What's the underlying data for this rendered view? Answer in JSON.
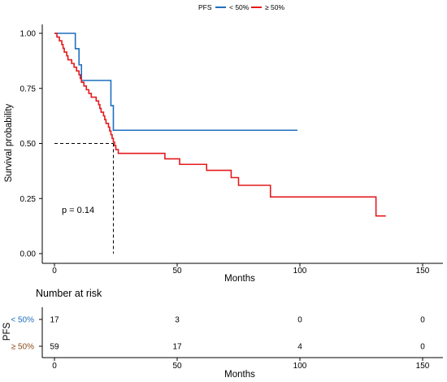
{
  "legend": {
    "title": "PFS",
    "labels": [
      "< 50%",
      "≥ 50%"
    ]
  },
  "annotation": {
    "p_value": "p = 0.14"
  },
  "risk_table": {
    "title": "Number at risk",
    "y_title": "PFS",
    "x_title": "Months",
    "x_ticks": [
      0,
      50,
      100,
      150
    ],
    "rows": [
      {
        "label": "< 50%",
        "counts": [
          "17",
          "3",
          "0",
          "0"
        ]
      },
      {
        "label": "≥ 50%",
        "counts": [
          "59",
          "17",
          "4",
          "0"
        ]
      }
    ]
  },
  "chart_data": {
    "type": "line",
    "title": "",
    "xlabel": "Months",
    "ylabel": "Survival probability",
    "xlim": [
      0,
      155
    ],
    "ylim": [
      0,
      1
    ],
    "x_ticks": [
      0,
      50,
      100,
      150
    ],
    "y_ticks": [
      "0.00",
      "0.25",
      "0.50",
      "0.75",
      "1.00"
    ],
    "grid": false,
    "legend_position": "top",
    "median_survival": {
      "y": 0.5,
      "x": 24
    },
    "series": [
      {
        "name": "< 50%",
        "color": "#1f6fbf",
        "steps": [
          [
            0,
            1.0
          ],
          [
            8.5,
            0.93
          ],
          [
            10,
            0.857
          ],
          [
            11,
            0.786
          ],
          [
            23,
            0.672
          ],
          [
            24,
            0.56
          ],
          [
            99,
            0.56
          ]
        ]
      },
      {
        "name": "≥ 50%",
        "color": "#e41a1c",
        "steps": [
          [
            0,
            1.0
          ],
          [
            1,
            0.983
          ],
          [
            2,
            0.966
          ],
          [
            3,
            0.949
          ],
          [
            3.5,
            0.932
          ],
          [
            4,
            0.915
          ],
          [
            5,
            0.898
          ],
          [
            5.5,
            0.88
          ],
          [
            7,
            0.863
          ],
          [
            8,
            0.846
          ],
          [
            9,
            0.829
          ],
          [
            10,
            0.812
          ],
          [
            10.5,
            0.795
          ],
          [
            11,
            0.778
          ],
          [
            12,
            0.761
          ],
          [
            13,
            0.744
          ],
          [
            14,
            0.727
          ],
          [
            15,
            0.71
          ],
          [
            17,
            0.693
          ],
          [
            18,
            0.676
          ],
          [
            18.5,
            0.659
          ],
          [
            19,
            0.642
          ],
          [
            20,
            0.625
          ],
          [
            20.5,
            0.608
          ],
          [
            21,
            0.591
          ],
          [
            22,
            0.574
          ],
          [
            22.5,
            0.557
          ],
          [
            23,
            0.54
          ],
          [
            23.5,
            0.523
          ],
          [
            24,
            0.506
          ],
          [
            24.5,
            0.49
          ],
          [
            25,
            0.472
          ],
          [
            26,
            0.455
          ],
          [
            45,
            0.43
          ],
          [
            51,
            0.405
          ],
          [
            62,
            0.378
          ],
          [
            72,
            0.345
          ],
          [
            75,
            0.31
          ],
          [
            88,
            0.257
          ],
          [
            130,
            0.257
          ],
          [
            131,
            0.171
          ],
          [
            135,
            0.171
          ]
        ]
      }
    ]
  }
}
